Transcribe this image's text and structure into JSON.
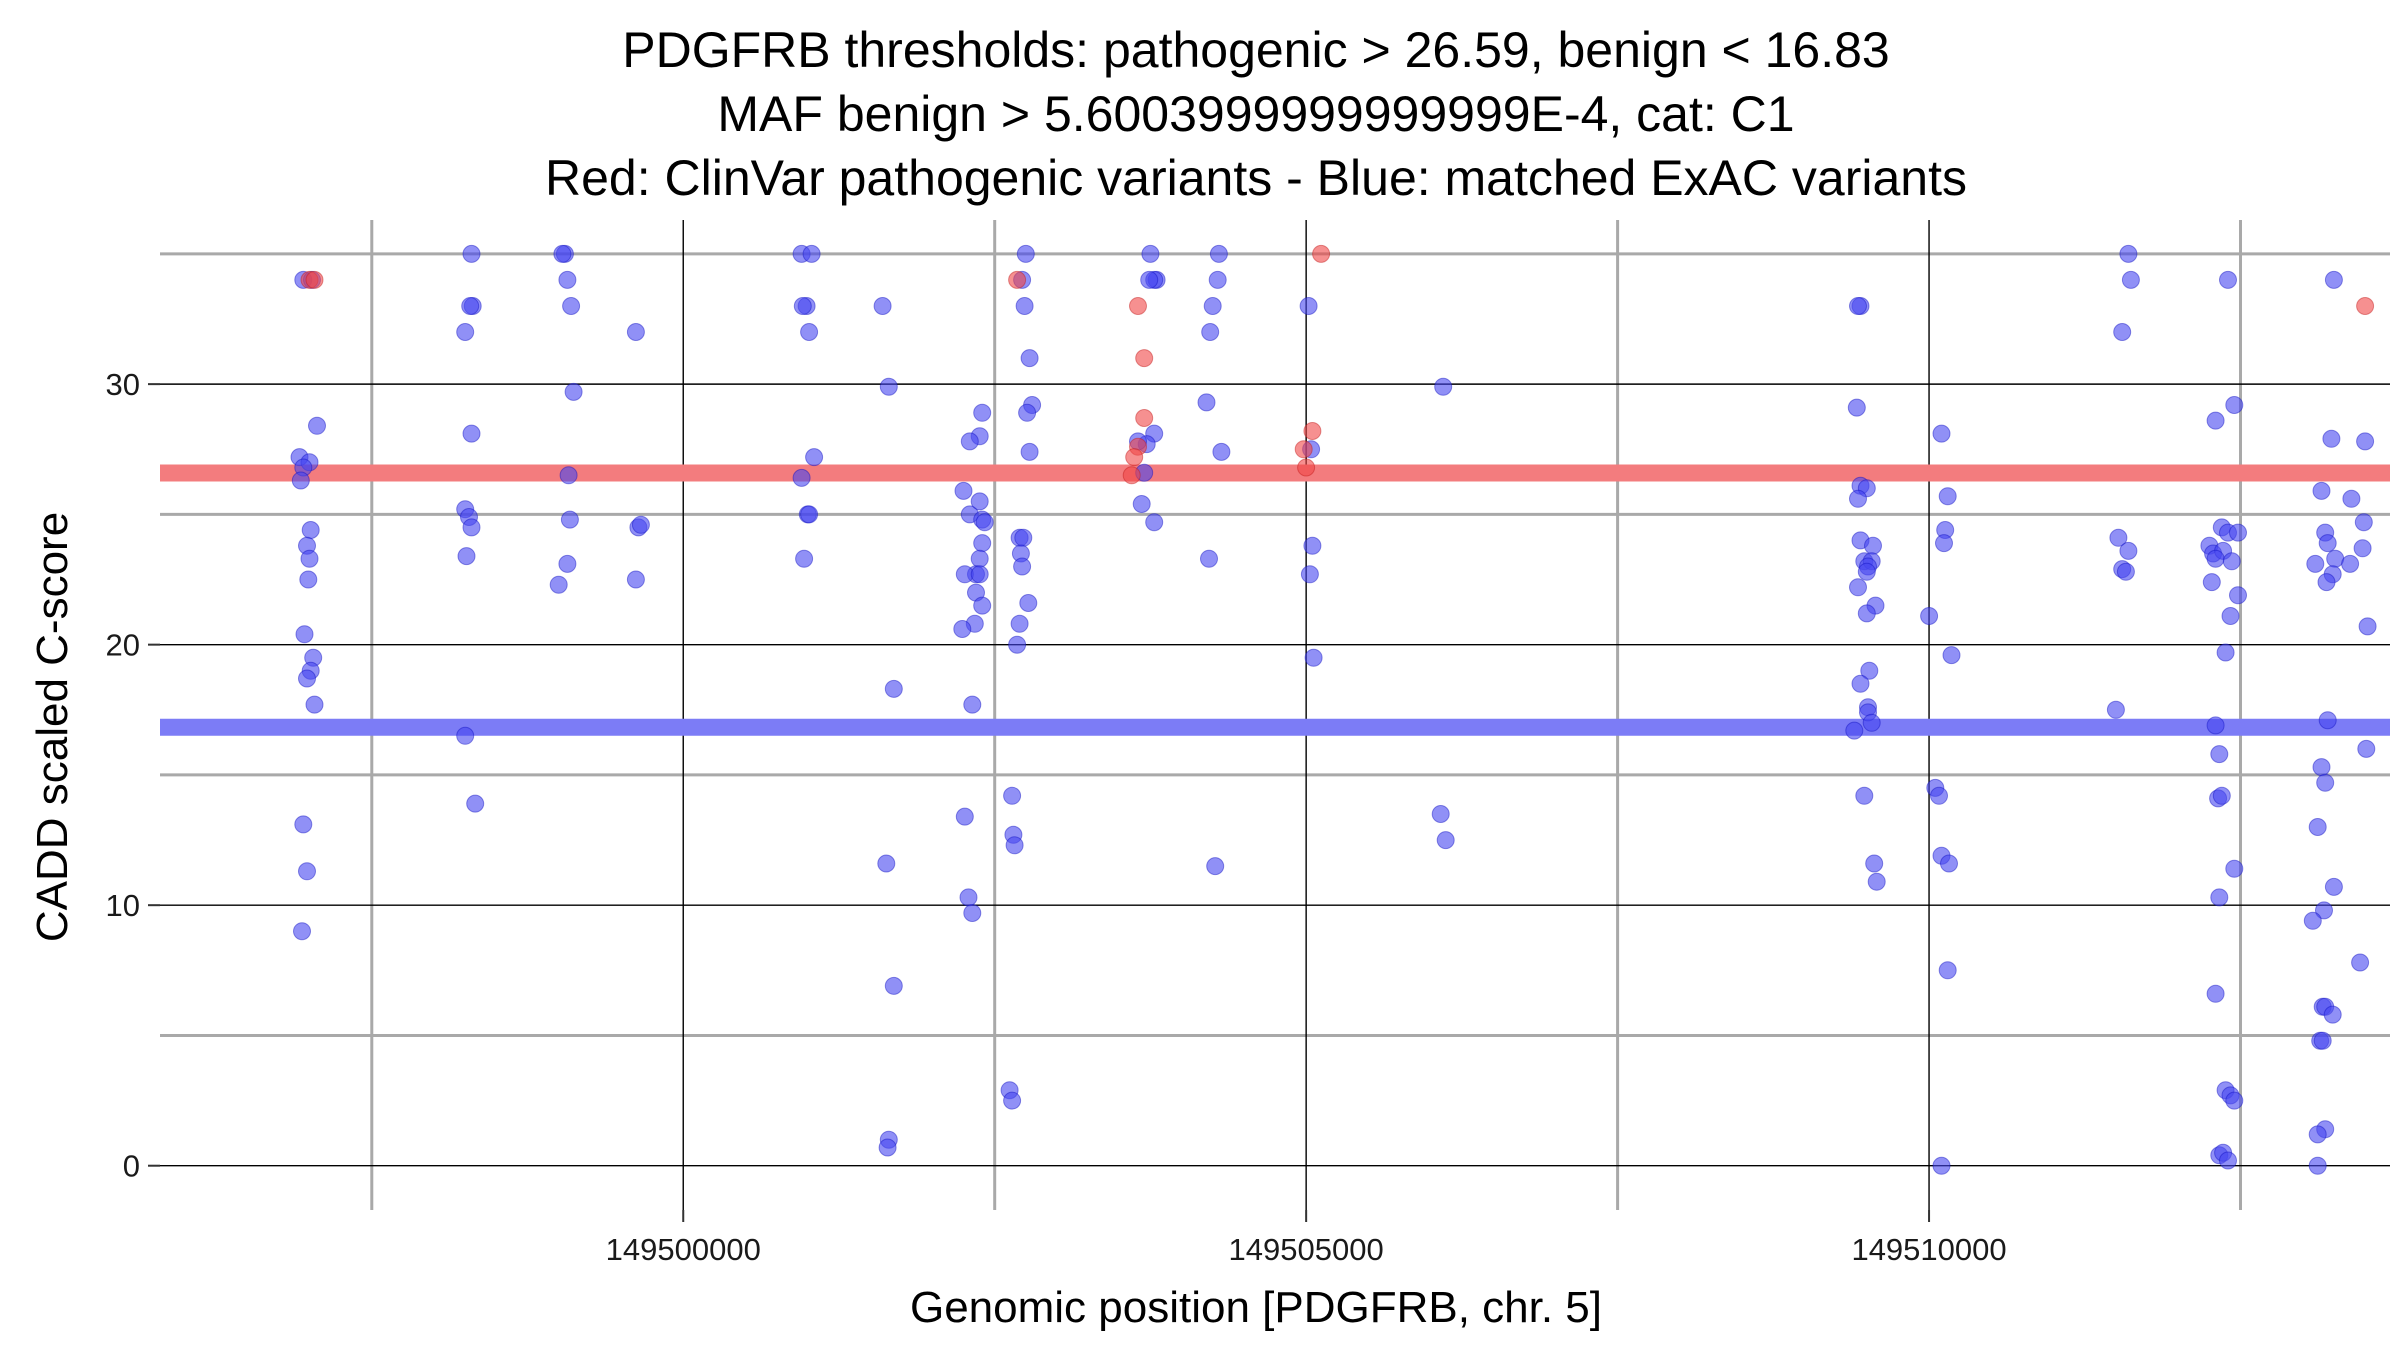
{
  "chart_data": {
    "type": "scatter",
    "title_lines": [
      "PDGFRB thresholds: pathogenic > 26.59, benign < 16.83",
      "MAF benign > 5.6003999999999999E-4, cat: C1",
      "Red: ClinVar pathogenic variants - Blue: matched ExAC variants"
    ],
    "xlabel": "Genomic position [PDGFRB, chr. 5]",
    "ylabel": "CADD scaled C-score",
    "xlim": [
      149495800,
      149513700
    ],
    "ylim": [
      -1.7,
      36.3
    ],
    "x_major_ticks": [
      149500000,
      149505000,
      149510000
    ],
    "x_tick_labels": [
      "149500000",
      "149505000",
      "149510000"
    ],
    "x_minor_gridlines": [
      149497500,
      149502500,
      149507500,
      149512500
    ],
    "y_major_ticks": [
      0,
      10,
      20,
      30
    ],
    "y_tick_labels": [
      "0",
      "10",
      "20",
      "30"
    ],
    "y_minor_gridlines": [
      5,
      15,
      25,
      35
    ],
    "thresholds": [
      {
        "name": "pathogenic",
        "value": 26.59,
        "color": "#f37c7e"
      },
      {
        "name": "benign",
        "value": 16.83,
        "color": "#7c7cf6"
      }
    ],
    "colors": {
      "benign_points": "#4646f0",
      "pathogenic_points": "#f04646"
    },
    "series": [
      {
        "name": "ClinVar pathogenic variants",
        "color": "#ff0000",
        "points": [
          [
            149497000,
            34
          ],
          [
            149497040,
            34
          ],
          [
            149502680,
            34
          ],
          [
            149503650,
            33
          ],
          [
            149503700,
            31
          ],
          [
            149503700,
            28.7
          ],
          [
            149503650,
            27.6
          ],
          [
            149503620,
            27.2
          ],
          [
            149503600,
            26.5
          ],
          [
            149505050,
            28.2
          ],
          [
            149505000,
            26.8
          ],
          [
            149505120,
            35
          ],
          [
            149504980,
            27.5
          ],
          [
            149513500,
            33
          ]
        ]
      },
      {
        "name": "matched ExAC variants",
        "color": "#0000ff",
        "points": [
          [
            149496950,
            34
          ],
          [
            149497020,
            34
          ],
          [
            149496920,
            27.2
          ],
          [
            149497000,
            27
          ],
          [
            149496950,
            26.8
          ],
          [
            149496930,
            26.3
          ],
          [
            149497060,
            28.4
          ],
          [
            149497010,
            24.4
          ],
          [
            149496980,
            23.8
          ],
          [
            149497000,
            23.3
          ],
          [
            149496990,
            22.5
          ],
          [
            149496960,
            20.4
          ],
          [
            149497030,
            19.5
          ],
          [
            149497010,
            19
          ],
          [
            149496980,
            18.7
          ],
          [
            149497040,
            17.7
          ],
          [
            149496950,
            13.1
          ],
          [
            149496980,
            11.3
          ],
          [
            149496940,
            9
          ],
          [
            149498300,
            35
          ],
          [
            149498310,
            33
          ],
          [
            149498290,
            33
          ],
          [
            149498250,
            32
          ],
          [
            149498300,
            28.1
          ],
          [
            149498250,
            25.2
          ],
          [
            149498280,
            24.9
          ],
          [
            149498300,
            24.5
          ],
          [
            149498260,
            23.4
          ],
          [
            149498250,
            16.5
          ],
          [
            149498330,
            13.9
          ],
          [
            149499050,
            35
          ],
          [
            149499030,
            35
          ],
          [
            149499070,
            34
          ],
          [
            149499100,
            33
          ],
          [
            149499120,
            29.7
          ],
          [
            149499080,
            26.5
          ],
          [
            149499090,
            24.8
          ],
          [
            149499070,
            23.1
          ],
          [
            149499000,
            22.3
          ],
          [
            149499620,
            32
          ],
          [
            149499640,
            24.5
          ],
          [
            149499660,
            24.6
          ],
          [
            149499620,
            22.5
          ],
          [
            149500950,
            35
          ],
          [
            149501030,
            35
          ],
          [
            149500990,
            33
          ],
          [
            149500960,
            33
          ],
          [
            149501010,
            32
          ],
          [
            149501050,
            27.2
          ],
          [
            149500950,
            26.4
          ],
          [
            149500970,
            23.3
          ],
          [
            149501000,
            25
          ],
          [
            149501010,
            25
          ],
          [
            149501600,
            33
          ],
          [
            149501650,
            29.9
          ],
          [
            149501690,
            18.3
          ],
          [
            149501630,
            11.6
          ],
          [
            149501690,
            6.9
          ],
          [
            149501650,
            1
          ],
          [
            149501640,
            0.7
          ],
          [
            149502250,
            25.9
          ],
          [
            149502300,
            25
          ],
          [
            149502400,
            28.9
          ],
          [
            149502380,
            28
          ],
          [
            149502300,
            27.8
          ],
          [
            149502380,
            25.5
          ],
          [
            149502400,
            24.8
          ],
          [
            149502420,
            24.7
          ],
          [
            149502400,
            23.9
          ],
          [
            149502380,
            23.3
          ],
          [
            149502350,
            22.7
          ],
          [
            149502260,
            22.7
          ],
          [
            149502380,
            22.7
          ],
          [
            149502350,
            22
          ],
          [
            149502400,
            21.5
          ],
          [
            149502340,
            20.8
          ],
          [
            149502240,
            20.6
          ],
          [
            149502320,
            17.7
          ],
          [
            149502260,
            13.4
          ],
          [
            149502290,
            10.3
          ],
          [
            149502320,
            9.7
          ],
          [
            149502750,
            35
          ],
          [
            149502720,
            34
          ],
          [
            149502740,
            33
          ],
          [
            149502780,
            31
          ],
          [
            149502800,
            29.2
          ],
          [
            149502760,
            28.9
          ],
          [
            149502780,
            27.4
          ],
          [
            149502700,
            24.1
          ],
          [
            149502730,
            24.1
          ],
          [
            149502710,
            23.5
          ],
          [
            149502720,
            23
          ],
          [
            149502770,
            21.6
          ],
          [
            149502700,
            20.8
          ],
          [
            149502680,
            20
          ],
          [
            149502640,
            14.2
          ],
          [
            149502650,
            12.7
          ],
          [
            149502660,
            12.3
          ],
          [
            149502620,
            2.9
          ],
          [
            149502640,
            2.5
          ],
          [
            149503750,
            35
          ],
          [
            149503800,
            34
          ],
          [
            149503780,
            34
          ],
          [
            149503740,
            34
          ],
          [
            149503780,
            28.1
          ],
          [
            149503720,
            27.7
          ],
          [
            149503650,
            27.8
          ],
          [
            149503700,
            26.6
          ],
          [
            149503680,
            25.4
          ],
          [
            149503780,
            24.7
          ],
          [
            149504300,
            35
          ],
          [
            149504290,
            34
          ],
          [
            149504250,
            33
          ],
          [
            149504230,
            32
          ],
          [
            149504200,
            29.3
          ],
          [
            149504320,
            27.4
          ],
          [
            149504220,
            23.3
          ],
          [
            149504270,
            11.5
          ],
          [
            149505020,
            33
          ],
          [
            149505040,
            27.5
          ],
          [
            149505050,
            23.8
          ],
          [
            149505030,
            22.7
          ],
          [
            149505060,
            19.5
          ],
          [
            149506100,
            29.9
          ],
          [
            149506080,
            13.5
          ],
          [
            149506120,
            12.5
          ],
          [
            149509450,
            33
          ],
          [
            149509430,
            33
          ],
          [
            149509420,
            29.1
          ],
          [
            149509450,
            26.1
          ],
          [
            149509500,
            26
          ],
          [
            149509430,
            25.6
          ],
          [
            149509450,
            24
          ],
          [
            149509550,
            23.8
          ],
          [
            149509480,
            23.2
          ],
          [
            149509540,
            23.2
          ],
          [
            149509510,
            23
          ],
          [
            149509500,
            22.8
          ],
          [
            149509430,
            22.2
          ],
          [
            149509570,
            21.5
          ],
          [
            149509500,
            21.2
          ],
          [
            149509520,
            19
          ],
          [
            149509450,
            18.5
          ],
          [
            149509510,
            17.6
          ],
          [
            149509510,
            17.4
          ],
          [
            149509540,
            17
          ],
          [
            149509400,
            16.7
          ],
          [
            149509480,
            14.2
          ],
          [
            149509560,
            11.6
          ],
          [
            149509580,
            10.9
          ],
          [
            149510100,
            28.1
          ],
          [
            149510150,
            25.7
          ],
          [
            149510130,
            24.4
          ],
          [
            149510120,
            23.9
          ],
          [
            149510000,
            21.1
          ],
          [
            149510180,
            19.6
          ],
          [
            149510050,
            14.5
          ],
          [
            149510080,
            14.2
          ],
          [
            149510100,
            11.9
          ],
          [
            149510160,
            11.6
          ],
          [
            149510150,
            7.5
          ],
          [
            149510100,
            0
          ],
          [
            149511600,
            35
          ],
          [
            149511620,
            34
          ],
          [
            149511550,
            32
          ],
          [
            149511520,
            24.1
          ],
          [
            149511600,
            23.6
          ],
          [
            149511550,
            22.9
          ],
          [
            149511580,
            22.8
          ],
          [
            149511500,
            17.5
          ],
          [
            149512400,
            34
          ],
          [
            149512450,
            29.2
          ],
          [
            149512300,
            28.6
          ],
          [
            149512350,
            24.5
          ],
          [
            149512400,
            24.3
          ],
          [
            149512480,
            24.3
          ],
          [
            149512250,
            23.8
          ],
          [
            149512280,
            23.5
          ],
          [
            149512360,
            23.6
          ],
          [
            149512300,
            23.3
          ],
          [
            149512430,
            23.2
          ],
          [
            149512270,
            22.4
          ],
          [
            149512480,
            21.9
          ],
          [
            149512420,
            21.1
          ],
          [
            149512380,
            19.7
          ],
          [
            149512300,
            16.9
          ],
          [
            149512330,
            15.8
          ],
          [
            149512320,
            14.1
          ],
          [
            149512350,
            14.2
          ],
          [
            149512450,
            11.4
          ],
          [
            149512330,
            10.3
          ],
          [
            149512300,
            6.6
          ],
          [
            149512380,
            2.9
          ],
          [
            149512420,
            2.7
          ],
          [
            149512450,
            2.5
          ],
          [
            149512330,
            0.4
          ],
          [
            149512360,
            0.5
          ],
          [
            149512400,
            0.2
          ],
          [
            149513250,
            34
          ],
          [
            149513230,
            27.9
          ],
          [
            149513500,
            27.8
          ],
          [
            149513150,
            25.9
          ],
          [
            149513390,
            25.6
          ],
          [
            149513490,
            24.7
          ],
          [
            149513180,
            24.3
          ],
          [
            149513200,
            23.9
          ],
          [
            149513480,
            23.7
          ],
          [
            149513260,
            23.3
          ],
          [
            149513100,
            23.1
          ],
          [
            149513380,
            23.1
          ],
          [
            149513240,
            22.7
          ],
          [
            149513190,
            22.4
          ],
          [
            149513520,
            20.7
          ],
          [
            149513200,
            17.1
          ],
          [
            149513510,
            16
          ],
          [
            149513150,
            15.3
          ],
          [
            149513180,
            14.7
          ],
          [
            149513120,
            13
          ],
          [
            149513250,
            10.7
          ],
          [
            149513170,
            9.8
          ],
          [
            149513080,
            9.4
          ],
          [
            149513460,
            7.8
          ],
          [
            149513160,
            6.1
          ],
          [
            149513180,
            6.1
          ],
          [
            149513240,
            5.8
          ],
          [
            149513140,
            4.8
          ],
          [
            149513160,
            4.8
          ],
          [
            149513180,
            1.4
          ],
          [
            149513120,
            1.2
          ],
          [
            149513120,
            0
          ]
        ]
      }
    ]
  }
}
